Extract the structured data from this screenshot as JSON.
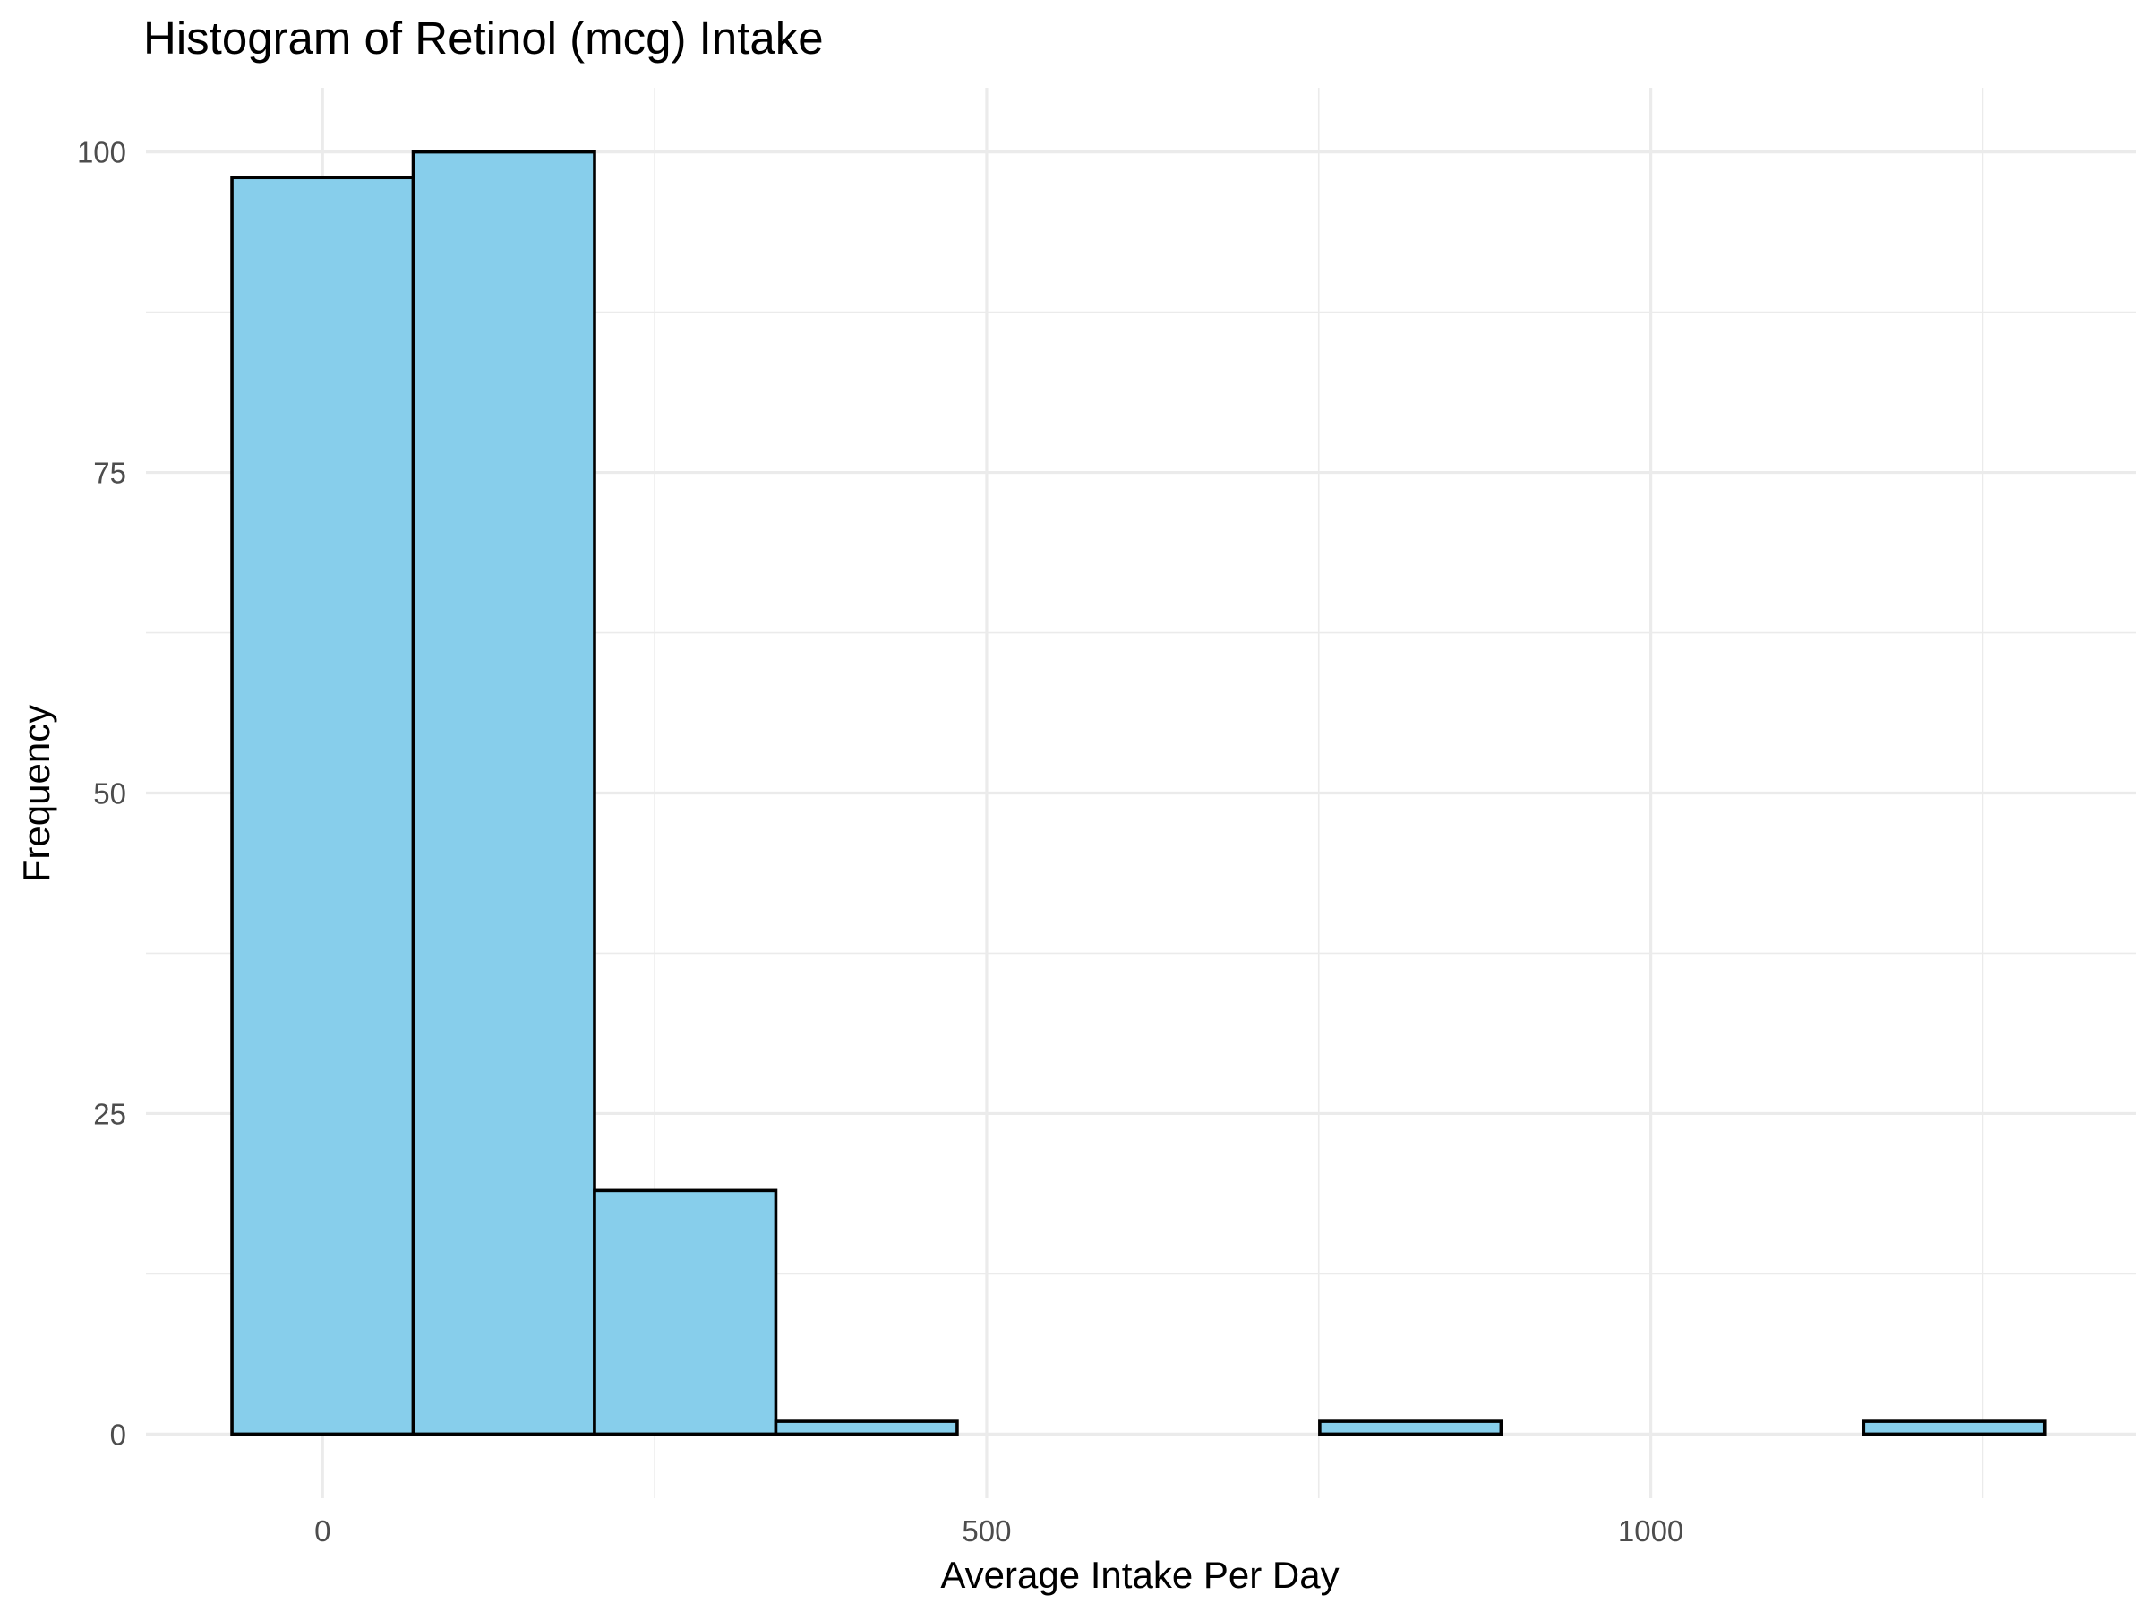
{
  "chart_data": {
    "type": "bar",
    "title": "Histogram of Retinol (mcg) Intake",
    "xlabel": "Average Intake Per Day",
    "ylabel": "Frequency",
    "bin_width": 136.5,
    "bins": [
      {
        "x0": -68.25,
        "x1": 68.25,
        "count": 98
      },
      {
        "x0": 68.25,
        "x1": 204.75,
        "count": 100
      },
      {
        "x0": 204.75,
        "x1": 341.25,
        "count": 19
      },
      {
        "x0": 341.25,
        "x1": 477.75,
        "count": 1
      },
      {
        "x0": 477.75,
        "x1": 614.25,
        "count": 0
      },
      {
        "x0": 614.25,
        "x1": 750.75,
        "count": 0
      },
      {
        "x0": 750.75,
        "x1": 887.25,
        "count": 1
      },
      {
        "x0": 887.25,
        "x1": 1023.75,
        "count": 0
      },
      {
        "x0": 1023.75,
        "x1": 1160.25,
        "count": 0
      },
      {
        "x0": 1160.25,
        "x1": 1296.75,
        "count": 1
      }
    ],
    "xlim": [
      -133,
      1365
    ],
    "ylim": [
      -5,
      105
    ],
    "x_ticks": [
      0,
      500,
      1000
    ],
    "y_ticks": [
      0,
      25,
      50,
      75,
      100
    ],
    "x_minor_ticks": [
      250,
      750,
      1250
    ],
    "y_minor_ticks": [
      12.5,
      37.5,
      62.5,
      87.5
    ],
    "grid": true,
    "fill_color": "#87CEEB",
    "edge_color": "#000000"
  }
}
